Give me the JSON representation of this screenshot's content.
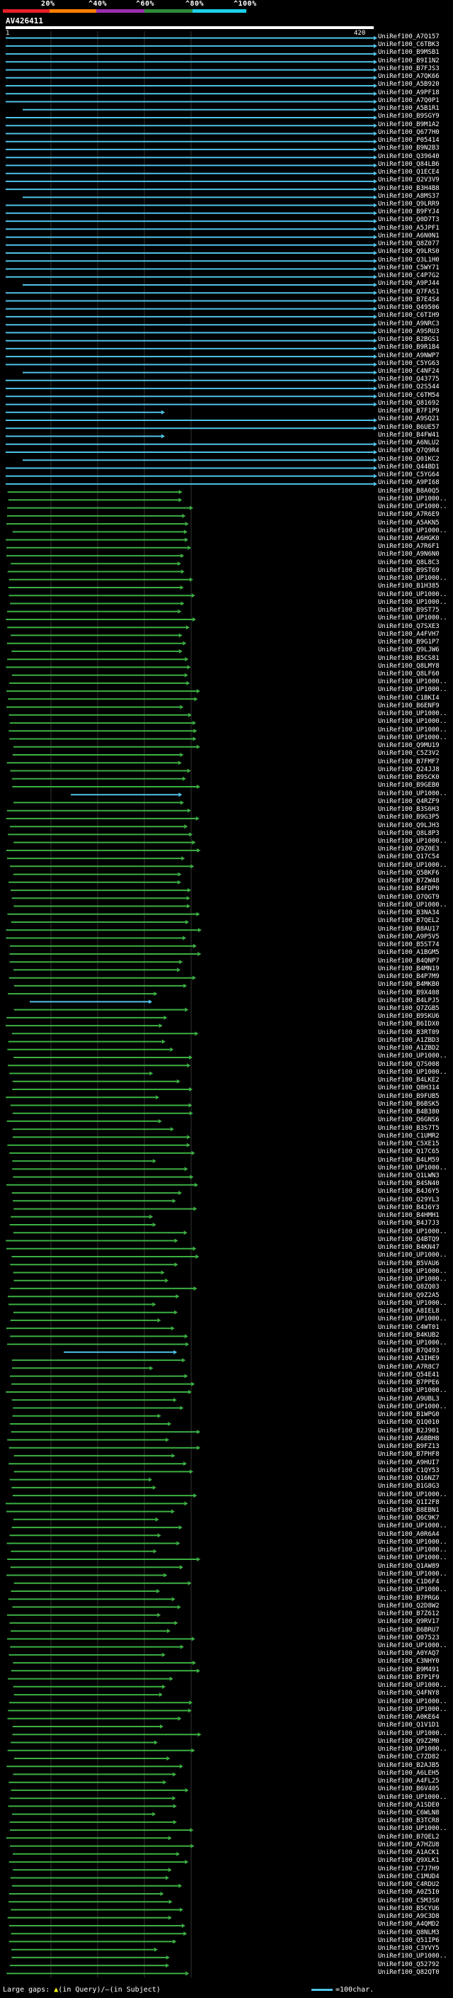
{
  "query": {
    "title": "AV426411",
    "ruler_start": "1",
    "ruler_end": "420",
    "length": 420
  },
  "legend": {
    "labels": [
      "20%",
      "^40%",
      "^60%",
      "^80%",
      "^100%"
    ],
    "scale_colors": [
      "#e8202a",
      "#ff7f00",
      "#9b2fae",
      "#2e8b3a",
      "#1bd1e8"
    ]
  },
  "colors": {
    "cyan": "#4fc3e8",
    "green": "#3cb043",
    "background": "#000000",
    "text": "#ffffff",
    "gap_marker": "#ffff00"
  },
  "hits": [
    "UniRef100_A7Q157",
    "UniRef100_C6TBK3",
    "UniRef100_B9MSB1",
    "UniRef100_B9I1N2",
    "UniRef100_B7FJS3",
    "UniRef100_A7QK66",
    "UniRef100_A5B920",
    "UniRef100_A9PF18",
    "UniRef100_A7Q0P1",
    "UniRef100_A5B1R1",
    "UniRef100_B9SGY9",
    "UniRef100_B9M1A2",
    "UniRef100_Q677H0",
    "UniRef100_P05414",
    "UniRef100_B9N2B3",
    "UniRef100_Q39640",
    "UniRef100_Q84LB6",
    "UniRef100_Q1ECE4",
    "UniRef100_Q2V3V9",
    "UniRef100_B3H4B8",
    "UniRef100_A8MS37",
    "UniRef100_Q9LRR9",
    "UniRef100_B9FYJ4",
    "UniRef100_Q0D7T3",
    "UniRef100_A5JPF1",
    "UniRef100_A6N0N1",
    "UniRef100_Q8Z077",
    "UniRef100_Q9LRS0",
    "UniRef100_Q3L1H0",
    "UniRef100_C5WY71",
    "UniRef100_C4P7G2",
    "UniRef100_A9PJ44",
    "UniRef100_Q7FAS1",
    "UniRef100_B7E4S4",
    "UniRef100_Q49506",
    "UniRef100_C6TIH9",
    "UniRef100_A9NRC3",
    "UniRef100_A9SRU3",
    "UniRef100_B2BGS1",
    "UniRef100_B9R1B4",
    "UniRef100_A9NWP7",
    "UniRef100_C5YG63",
    "UniRef100_C4NF24",
    "UniRef100_Q43775",
    "UniRef100_Q2S544",
    "UniRef100_C6TM54",
    "UniRef100_Q81692",
    "UniRef100_B7F1P9",
    "UniRef100_A9SQ21",
    "UniRef100_B6UE57",
    "UniRef100_B4FW41",
    "UniRef100_A6NLU2",
    "UniRef100_Q7Q9R4",
    "UniRef100_Q01KC2",
    "UniRef100_Q44BD1",
    "UniRef100_C5YG64",
    "UniRef100_A9PI68",
    "UniRef100_B8A0Q5",
    "UniRef100_UP1000..",
    "UniRef100_UP1000..",
    "UniRef100_A7R6E9",
    "UniRef100_A5AKN5",
    "UniRef100_UP1000..",
    "UniRef100_A6HGK0",
    "UniRef100_A7R6F1",
    "UniRef100_A9N6N0",
    "UniRef100_Q8L8C3",
    "UniRef100_B9ST69",
    "UniRef100_UP1000..",
    "UniRef100_B1H385",
    "UniRef100_UP1000..",
    "UniRef100_UP1000..",
    "UniRef100_B9ST75",
    "UniRef100_UP1000..",
    "UniRef100_Q7SXE3",
    "UniRef100_A4FVH7",
    "UniRef100_B9G1P7",
    "UniRef100_Q9LJW6",
    "UniRef100_B5CS81",
    "UniRef100_Q8LMY8",
    "UniRef100_Q8LF60",
    "UniRef100_UP1000..",
    "UniRef100_UP1000..",
    "UniRef100_C1BKI4",
    "UniRef100_B6ENF9",
    "UniRef100_UP1000..",
    "UniRef100_UP1000..",
    "UniRef100_UP1000..",
    "UniRef100_UP1000..",
    "UniRef100_Q9MU19",
    "UniRef100_C5Z3V2",
    "UniRef100_B7FMF7",
    "UniRef100_Q24JJ8",
    "UniRef100_B9SCK0",
    "UniRef100_B9GEB0",
    "UniRef100_UP1000..",
    "UniRef100_Q4RZF9",
    "UniRef100_B3S6H3",
    "UniRef100_B9G3P5",
    "UniRef100_Q9LJH3",
    "UniRef100_Q8L8P3",
    "UniRef100_UP1000..",
    "UniRef100_Q9Z0E3",
    "UniRef100_Q17C54",
    "UniRef100_UP1000..",
    "UniRef100_Q5BKF6",
    "UniRef100_B7ZW48",
    "UniRef100_B4FDP0",
    "UniRef100_Q7QGT9",
    "UniRef100_UP1000..",
    "UniRef100_B3NA34",
    "UniRef100_B7QEL2",
    "UniRef100_B8AU17",
    "UniRef100_A9P5V5",
    "UniRef100_B5ST74",
    "UniRef100_A1BGM5",
    "UniRef100_B4QNP7",
    "UniRef100_B4MN19",
    "UniRef100_B4P7M9",
    "UniRef100_B4MKB0",
    "UniRef100_B9X408",
    "UniRef100_B4LPJ5",
    "UniRef100_Q7ZGB5",
    "UniRef100_B9SKU6",
    "UniRef100_B6IDX0",
    "UniRef100_B3RT09",
    "UniRef100_A1ZBD3",
    "UniRef100_A1ZBD2",
    "UniRef100_UP1000..",
    "UniRef100_Q7S008",
    "UniRef100_UP1000..",
    "UniRef100_B4LKE2",
    "UniRef100_Q8H314",
    "UniRef100_B9FUB5",
    "UniRef100_B6BSK5",
    "UniRef100_B4B380",
    "UniRef100_Q6GNS6",
    "UniRef100_B3S7T5",
    "UniRef100_C1UMR2",
    "UniRef100_C5XE15",
    "UniRef100_Q17C65",
    "UniRef100_B4LM59",
    "UniRef100_UP1000..",
    "UniRef100_Q1LWN3",
    "UniRef100_B4SN40",
    "UniRef100_B4J6Y5",
    "UniRef100_Q29YL3",
    "UniRef100_B4J6Y3",
    "UniRef100_B4HMH1",
    "UniRef100_B4J7J3",
    "UniRef100_UP1000..",
    "UniRef100_Q4BTQ9",
    "UniRef100_B4KN47",
    "UniRef100_UP1000..",
    "UniRef100_B5VAU6",
    "UniRef100_UP1000..",
    "UniRef100_UP1000..",
    "UniRef100_Q8ZQ03",
    "UniRef100_Q9Z2A5",
    "UniRef100_UP1000..",
    "UniRef100_A8IEL8",
    "UniRef100_UP1000..",
    "UniRef100_C4WT01",
    "UniRef100_B4KUB2",
    "UniRef100_UP1000..",
    "UniRef100_B7Q493",
    "UniRef100_A3IHE9",
    "UniRef100_A7R8C7",
    "UniRef100_Q54E41",
    "UniRef100_B7PPE6",
    "UniRef100_UP1000..",
    "UniRef100_A9UBL3",
    "UniRef100_UP1000..",
    "UniRef100_B1WPG0",
    "UniRef100_Q1Q010",
    "UniRef100_B2J901",
    "UniRef100_A6BBH8",
    "UniRef100_B9FZ13",
    "UniRef100_B7PHF8",
    "UniRef100_A9HUI7",
    "UniRef100_C1QY53",
    "UniRef100_Q16NZ7",
    "UniRef100_B1G8G3",
    "UniRef100_UP1000..",
    "UniRef100_Q1I2F8",
    "UniRef100_B8EBN1",
    "UniRef100_Q6C9K7",
    "UniRef100_UP1000..",
    "UniRef100_A0R6A4",
    "UniRef100_UP1000..",
    "UniRef100_UP1000..",
    "UniRef100_UP1000..",
    "UniRef100_Q1AW89",
    "UniRef100_UP1000..",
    "UniRef100_C1D6F4",
    "UniRef100_UP1000..",
    "UniRef100_B7PRG6",
    "UniRef100_Q2D8W2",
    "UniRef100_B7Z612",
    "UniRef100_Q9RV17",
    "UniRef100_B6BRU7",
    "UniRef100_Q07523",
    "UniRef100_UP1000..",
    "UniRef100_A0YAQ7",
    "UniRef100_C3NHY0",
    "UniRef100_B9M491",
    "UniRef100_B7P1F9",
    "UniRef100_UP1000..",
    "UniRef100_Q4FNY8",
    "UniRef100_UP1000..",
    "UniRef100_UP1000..",
    "UniRef100_A0KE64",
    "UniRef100_Q1V1D1",
    "UniRef100_UP1000..",
    "UniRef100_Q9Z2M0",
    "UniRef100_UP1000..",
    "UniRef100_C7ZD82",
    "UniRef100_B2AJB5",
    "UniRef100_A6LEH5",
    "UniRef100_A4FL25",
    "UniRef100_B6V405",
    "UniRef100_UP1000..",
    "UniRef100_A1SDE0",
    "UniRef100_C6WLN8",
    "UniRef100_B3TCR8",
    "UniRef100_UP1000..",
    "UniRef100_B7QEL2",
    "UniRef100_A7HZU8",
    "UniRef100_A1ACK1",
    "UniRef100_Q9XLK1",
    "UniRef100_C7J7H9",
    "UniRef100_C1MUD4",
    "UniRef100_C4RDU2",
    "UniRef100_A0Z5I0",
    "UniRef100_C5M3S0",
    "UniRef100_B5CYU6",
    "UniRef100_A9C3D8",
    "UniRef100_A4QMD2",
    "UniRef100_Q8NLM3",
    "UniRef100_Q51IP6",
    "UniRef100_C3YVY5",
    "UniRef100_UP1000..",
    "UniRef100_Q52792",
    "UniRef100_Q82QT0"
  ],
  "footer": {
    "large_gaps_label": "Large gaps:",
    "in_query_label": "(in Query)",
    "in_subject_label": "(in Subject)",
    "scale_label": "=100char."
  }
}
